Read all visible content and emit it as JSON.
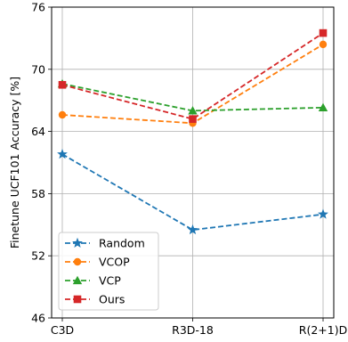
{
  "chart_data": {
    "type": "line",
    "categories": [
      "C3D",
      "R3D-18",
      "R(2+1)D"
    ],
    "ylabel": "Finetune UCF101 Accuracy [%]",
    "xlabel": "",
    "ylim": [
      46,
      76
    ],
    "yticks": [
      "46",
      "52",
      "58",
      "64",
      "70",
      "76"
    ],
    "grid": true,
    "legend_position": "lower-left",
    "series": [
      {
        "name": "Random",
        "values": [
          61.8,
          54.5,
          56.0
        ],
        "color": "#1f77b4",
        "marker": "star"
      },
      {
        "name": "VCOP",
        "values": [
          65.6,
          64.8,
          72.4
        ],
        "color": "#ff7f0e",
        "marker": "circle"
      },
      {
        "name": "VCP",
        "values": [
          68.6,
          66.0,
          66.3
        ],
        "color": "#2ca02c",
        "marker": "triangle"
      },
      {
        "name": "Ours",
        "values": [
          68.5,
          65.2,
          73.5
        ],
        "color": "#d62728",
        "marker": "square"
      }
    ]
  }
}
